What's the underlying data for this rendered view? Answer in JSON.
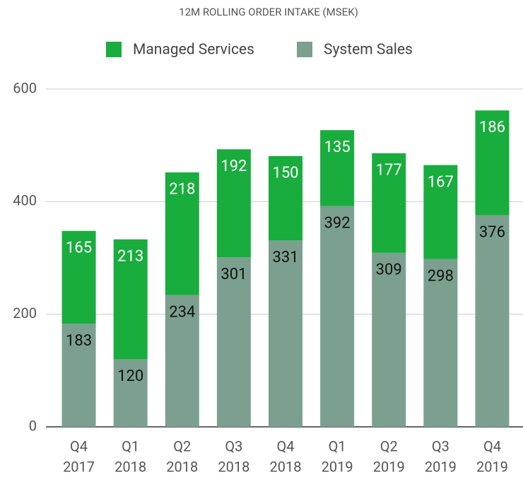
{
  "chart_data": {
    "type": "stacked_bar",
    "title": "12M ROLLING ORDER INTAKE (MSEK)",
    "categories": [
      [
        "Q4",
        "2017"
      ],
      [
        "Q1",
        "2018"
      ],
      [
        "Q2",
        "2018"
      ],
      [
        "Q3",
        "2018"
      ],
      [
        "Q4",
        "2018"
      ],
      [
        "Q1",
        "2019"
      ],
      [
        "Q2",
        "2019"
      ],
      [
        "Q3",
        "2019"
      ],
      [
        "Q4",
        "2019"
      ]
    ],
    "series": [
      {
        "name": "Managed Services",
        "color": "#19ad3d",
        "values": [
          165,
          213,
          218,
          192,
          150,
          135,
          177,
          167,
          186
        ]
      },
      {
        "name": "System Sales",
        "color": "#7ba090",
        "values": [
          183,
          120,
          234,
          301,
          331,
          392,
          309,
          298,
          376
        ]
      }
    ],
    "ylim": [
      0,
      600
    ],
    "yticks": [
      0,
      200,
      400,
      600
    ],
    "grid": true,
    "legend": "top"
  }
}
